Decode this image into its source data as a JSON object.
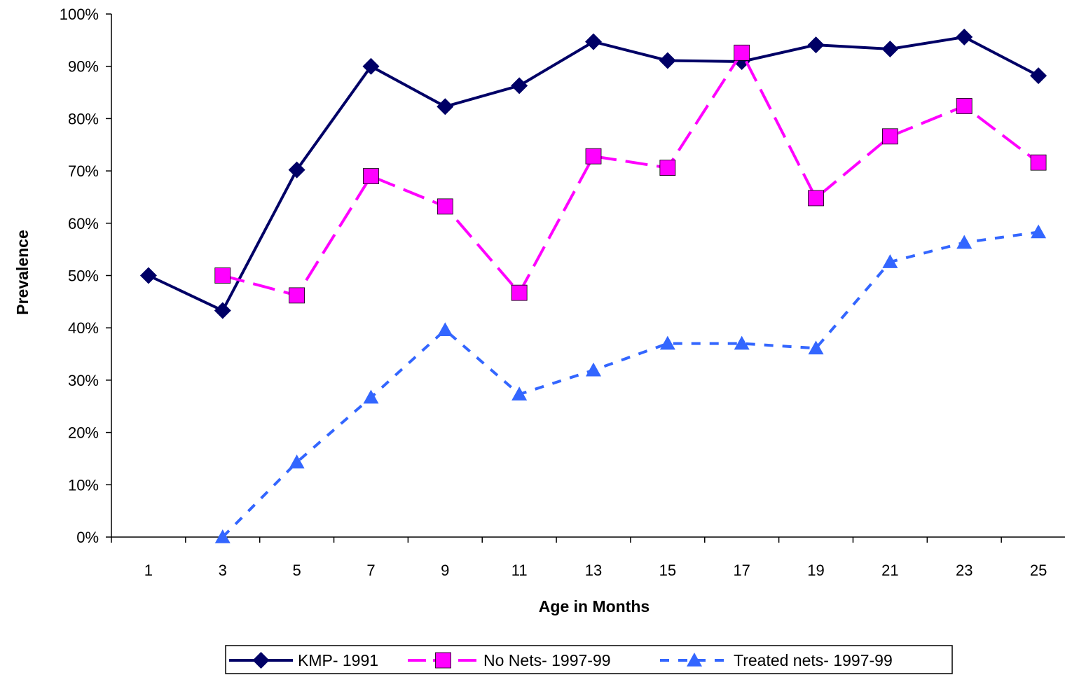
{
  "chart_data": {
    "type": "line",
    "title": "",
    "xlabel": "Age in Months",
    "ylabel": "Prevalence",
    "categories": [
      "1",
      "3",
      "5",
      "7",
      "9",
      "11",
      "13",
      "15",
      "17",
      "19",
      "21",
      "23",
      "25"
    ],
    "ylim": [
      0,
      100
    ],
    "yticks": [
      "0%",
      "10%",
      "20%",
      "30%",
      "40%",
      "50%",
      "60%",
      "70%",
      "80%",
      "90%",
      "100%"
    ],
    "grid": false,
    "legend_position": "bottom",
    "series": [
      {
        "name": "KMP- 1991",
        "color": "#000066",
        "marker": "diamond",
        "line_style": "solid",
        "values": [
          50,
          43.3,
          70.2,
          90,
          82.3,
          86.3,
          94.7,
          91.1,
          90.9,
          94.1,
          93.3,
          95.6,
          88.2
        ]
      },
      {
        "name": "No Nets- 1997-99",
        "color": "#ff00ff",
        "marker": "square",
        "line_style": "long-dash",
        "values": [
          null,
          50,
          46.2,
          69,
          63.2,
          46.7,
          72.8,
          70.6,
          92.6,
          64.8,
          76.6,
          82.4,
          71.6
        ]
      },
      {
        "name": "Treated nets- 1997-99",
        "color": "#3366ff",
        "marker": "triangle",
        "line_style": "short-dash",
        "values": [
          null,
          0,
          14.3,
          26.7,
          39.6,
          27.3,
          31.9,
          37,
          37,
          36.1,
          52.6,
          56.3,
          58.3
        ]
      }
    ]
  }
}
